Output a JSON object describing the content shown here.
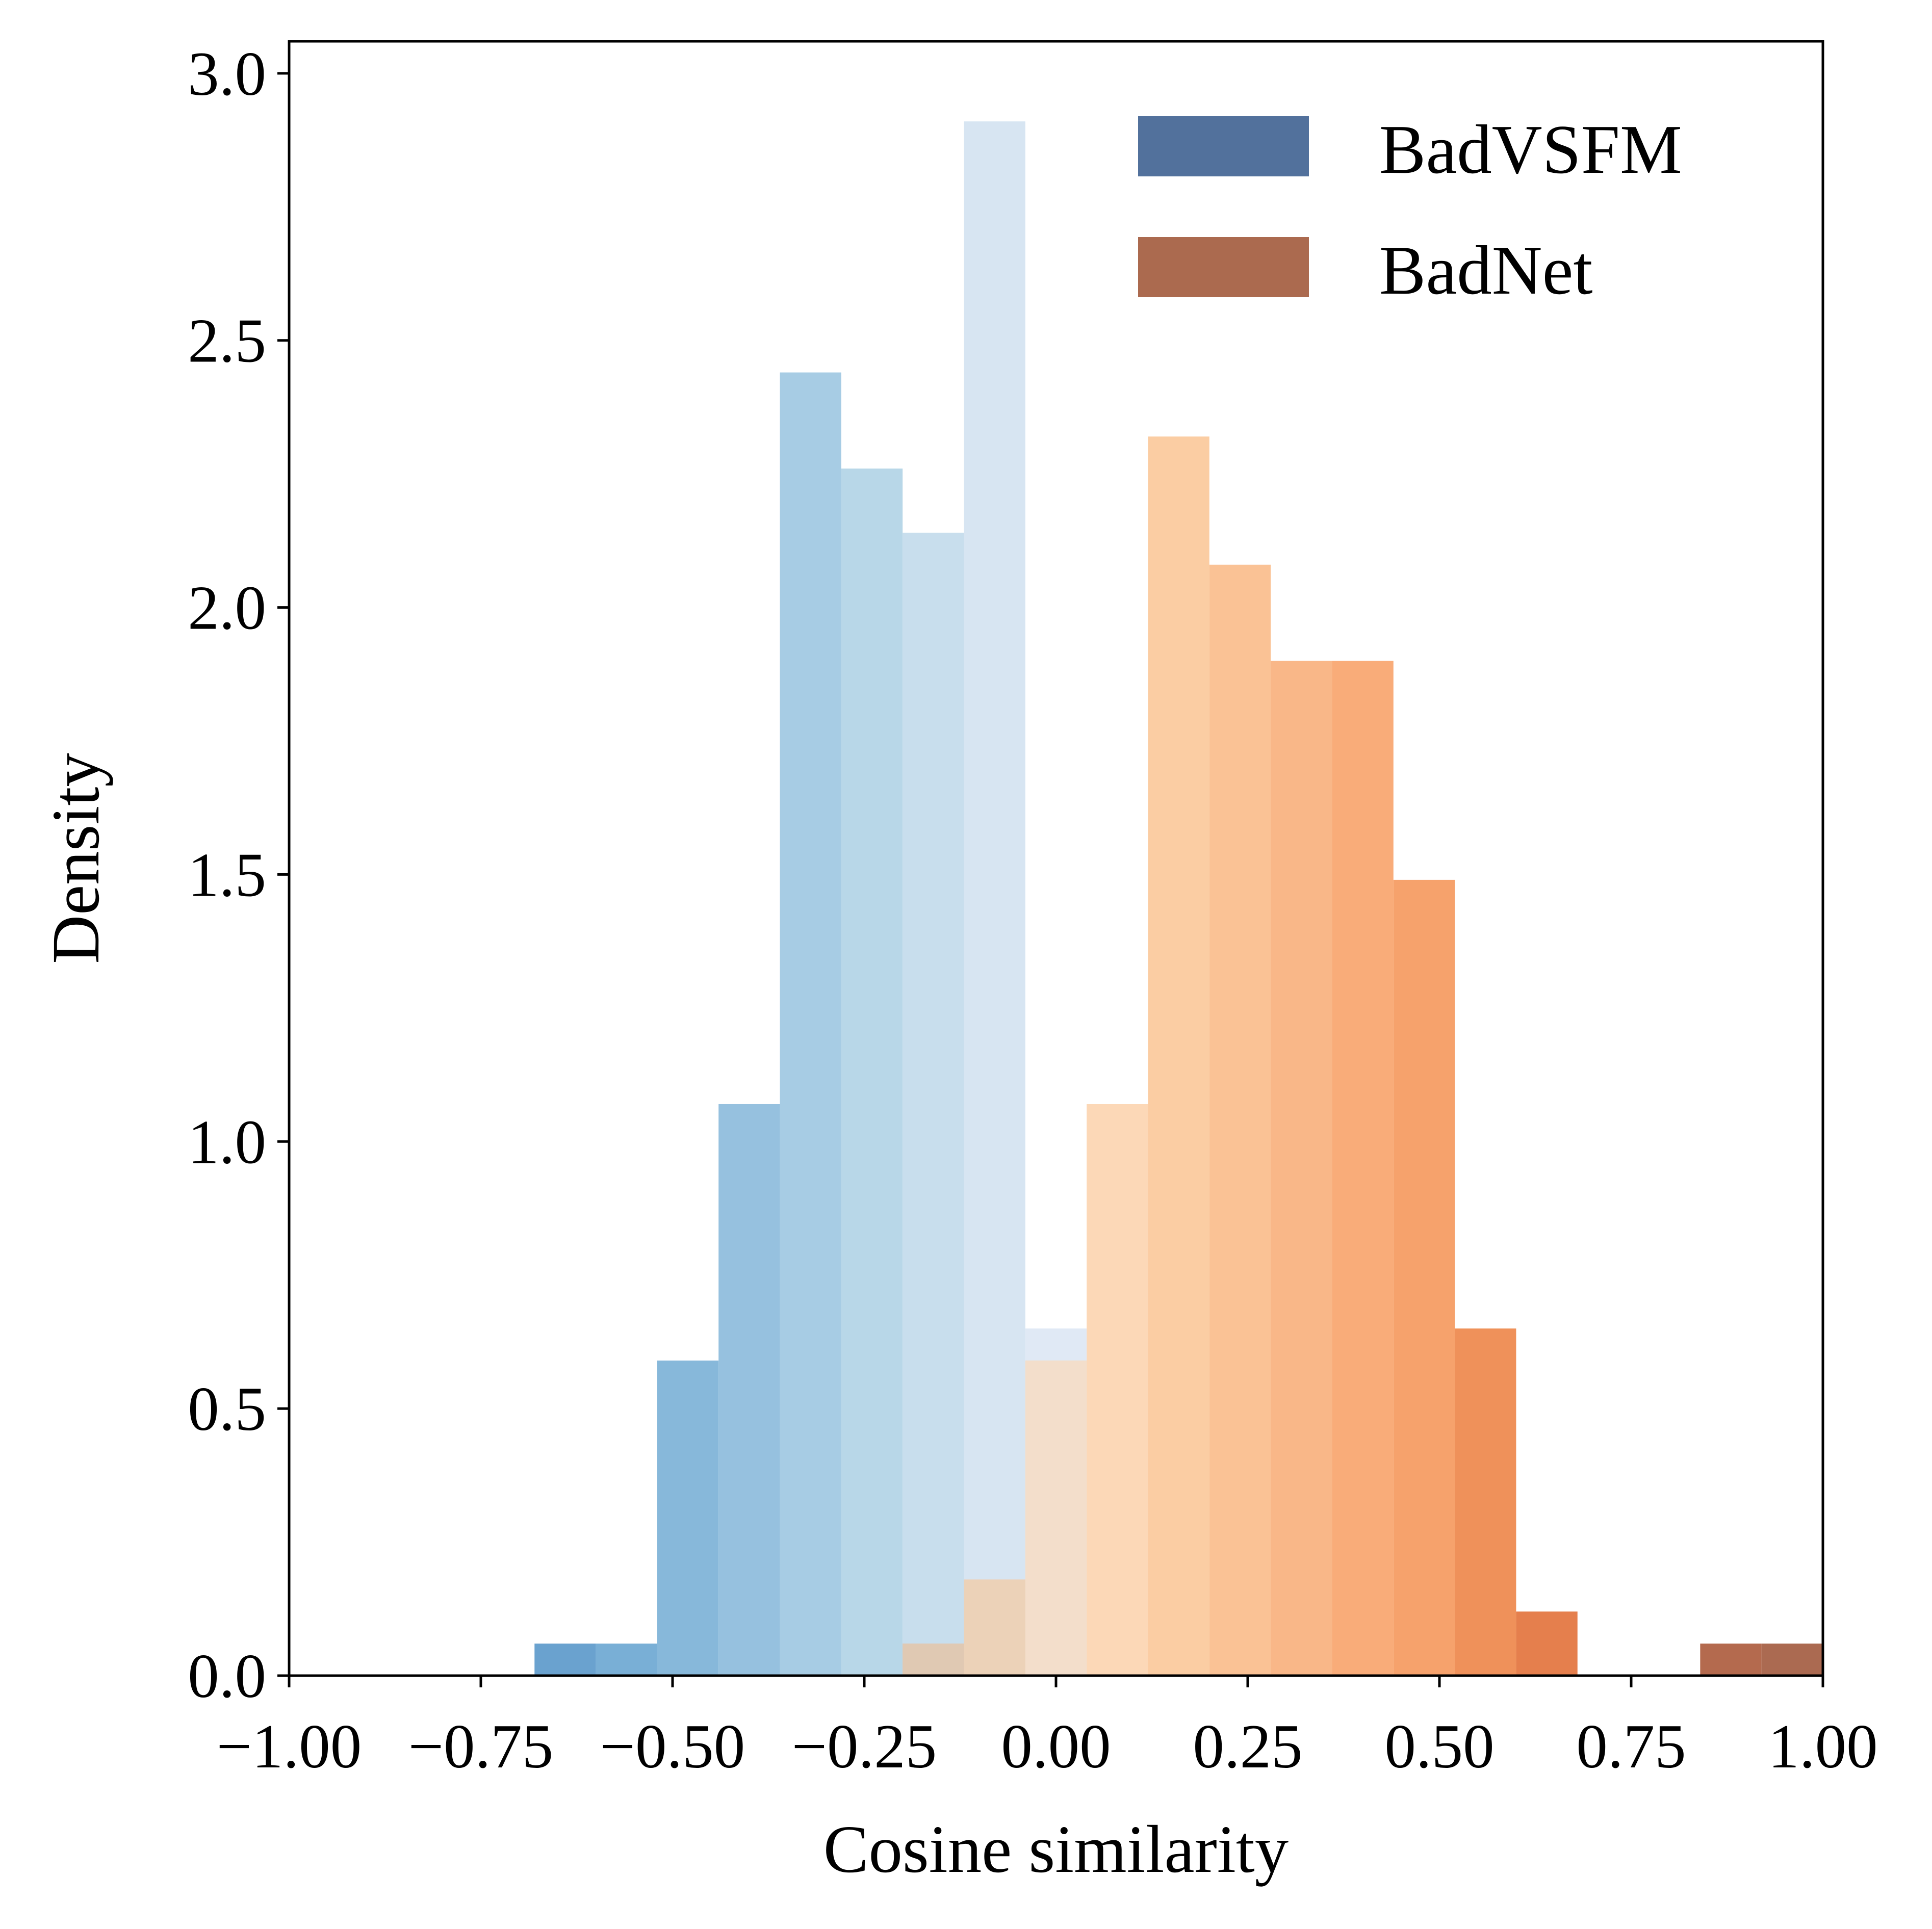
{
  "chart_data": {
    "type": "bar",
    "subtype": "histogram",
    "title": "",
    "xlabel": "Cosine similarity",
    "ylabel": "Density",
    "xlim": [
      -1.0,
      1.0
    ],
    "ylim": [
      0.0,
      3.06
    ],
    "xticks": [
      -1.0,
      -0.75,
      -0.5,
      -0.25,
      0.0,
      0.25,
      0.5,
      0.75,
      1.0
    ],
    "xtick_labels": [
      "−1.00",
      "−0.75",
      "−0.50",
      "−0.25",
      "0.00",
      "0.25",
      "0.50",
      "0.75",
      "1.00"
    ],
    "yticks": [
      0.0,
      0.5,
      1.0,
      1.5,
      2.0,
      2.5,
      3.0
    ],
    "ytick_labels": [
      "0.0",
      "0.5",
      "1.0",
      "1.5",
      "2.0",
      "2.5",
      "3.0"
    ],
    "legend_position": "top-right",
    "series": [
      {
        "name": "BadVSFM",
        "legend_color": "#52719c",
        "bins": [
          {
            "x0": -0.68,
            "x1": -0.6,
            "value": 0.06,
            "color": "#6aa2cf"
          },
          {
            "x0": -0.6,
            "x1": -0.52,
            "value": 0.06,
            "color": "#79afd6"
          },
          {
            "x0": -0.52,
            "x1": -0.44,
            "value": 0.59,
            "color": "#87b8da"
          },
          {
            "x0": -0.44,
            "x1": -0.36,
            "value": 1.07,
            "color": "#96c1df"
          },
          {
            "x0": -0.36,
            "x1": -0.28,
            "value": 2.44,
            "color": "#a7cce4"
          },
          {
            "x0": -0.28,
            "x1": -0.2,
            "value": 2.26,
            "color": "#b8d7e8"
          },
          {
            "x0": -0.2,
            "x1": -0.12,
            "value": 2.14,
            "color": "#c8deed"
          },
          {
            "x0": -0.12,
            "x1": -0.04,
            "value": 2.91,
            "color": "#d7e5f2"
          },
          {
            "x0": -0.04,
            "x1": 0.04,
            "value": 0.65,
            "color": "#e0e9f5"
          }
        ]
      },
      {
        "name": "BadNet",
        "legend_color": "#ab6a4f",
        "bins": [
          {
            "x0": -0.2,
            "x1": -0.12,
            "value": 0.06,
            "color": "#e8c2a2"
          },
          {
            "x0": -0.12,
            "x1": -0.04,
            "value": 0.18,
            "color": "#ecd2b8"
          },
          {
            "x0": -0.04,
            "x1": 0.04,
            "value": 0.59,
            "color": "#f3decb"
          },
          {
            "x0": 0.04,
            "x1": 0.12,
            "value": 1.07,
            "color": "#fcd8b7"
          },
          {
            "x0": 0.12,
            "x1": 0.2,
            "value": 2.32,
            "color": "#fbcda3"
          },
          {
            "x0": 0.2,
            "x1": 0.28,
            "value": 2.08,
            "color": "#fac295"
          },
          {
            "x0": 0.28,
            "x1": 0.36,
            "value": 1.9,
            "color": "#f9b788"
          },
          {
            "x0": 0.36,
            "x1": 0.44,
            "value": 1.9,
            "color": "#f9ac79"
          },
          {
            "x0": 0.44,
            "x1": 0.52,
            "value": 1.49,
            "color": "#f6a26c"
          },
          {
            "x0": 0.52,
            "x1": 0.6,
            "value": 0.65,
            "color": "#ef915a"
          },
          {
            "x0": 0.6,
            "x1": 0.68,
            "value": 0.12,
            "color": "#e57f4d"
          },
          {
            "x0": 0.84,
            "x1": 0.92,
            "value": 0.06,
            "color": "#b46a4e"
          },
          {
            "x0": 0.92,
            "x1": 1.0,
            "value": 0.06,
            "color": "#ab6a51"
          }
        ]
      }
    ],
    "overlap_colors": {
      "-0.20": "#e0c9b3",
      "-0.12": "#ecd2b8",
      "-0.04": "#f3decb",
      "0.04": "#eecfb0",
      "0.12": "#eccdae"
    }
  }
}
